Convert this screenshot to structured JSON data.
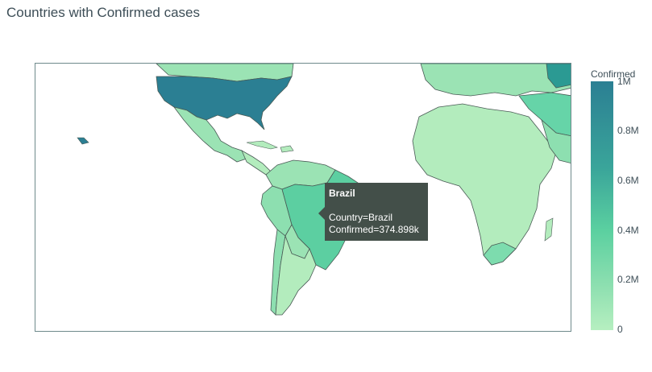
{
  "title": "Countries with Confirmed cases",
  "colorbar": {
    "title": "Confirmed",
    "ticks": [
      "1M",
      "0.8M",
      "0.6M",
      "0.4M",
      "0.2M",
      "0"
    ],
    "colorscale": [
      "#b6efc0",
      "#8ddfb0",
      "#5bd0a0",
      "#3aa59a",
      "#2b7f93"
    ]
  },
  "tooltip": {
    "name": "Brazil",
    "country_line": "Country=Brazil",
    "confirmed_line": "Confirmed=374.898k"
  },
  "colors": {
    "usa": "#2b7f93",
    "brazil": "#5ccfa1",
    "russia_region": "#66d4a8",
    "default_land": "#b3ecbd",
    "mid_land": "#9be3b4",
    "border": "#495a55"
  }
}
